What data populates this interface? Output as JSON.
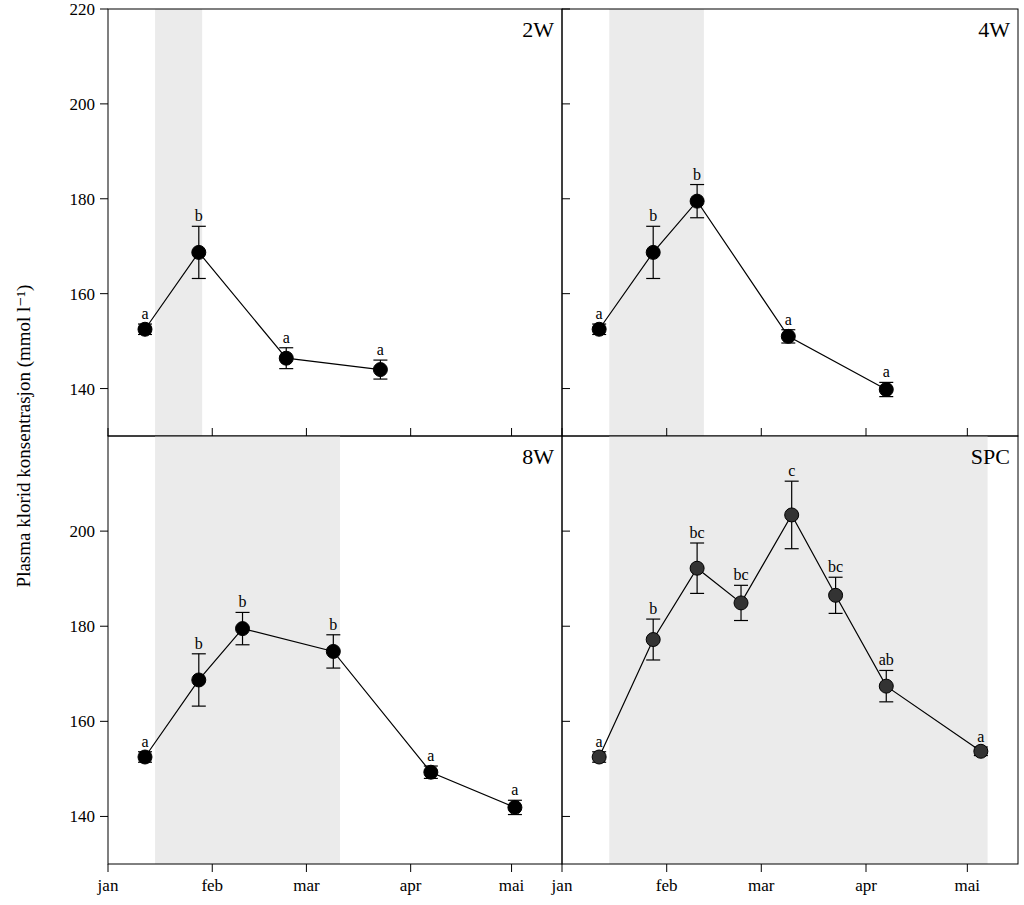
{
  "chart_data": [
    {
      "type": "line",
      "title": "2W",
      "y_label": "Plasma klorid konsentrasjon (mmol l⁻¹)",
      "x": [
        12,
        28,
        54,
        82
      ],
      "values": [
        152.5,
        168.7,
        146.4,
        144.0
      ],
      "errors": [
        1.1,
        5.5,
        2.2,
        2.0
      ],
      "point_labels": [
        "a",
        "b",
        "a",
        "a"
      ],
      "shaded_x": [
        15,
        29
      ],
      "color": "#000000",
      "marker": "circle",
      "xlim": [
        1,
        136
      ],
      "ylim": [
        130,
        220
      ],
      "xticks": [
        {
          "value": 1,
          "label": "jan"
        },
        {
          "value": 32,
          "label": "feb"
        },
        {
          "value": 60,
          "label": "mar"
        },
        {
          "value": 91,
          "label": "apr"
        },
        {
          "value": 121,
          "label": "mai"
        }
      ],
      "yticks": [
        140,
        160,
        180,
        200,
        220
      ],
      "tick_labels": "y"
    },
    {
      "type": "line",
      "title": "4W",
      "x": [
        12,
        28,
        41,
        68,
        97
      ],
      "values": [
        152.5,
        168.7,
        179.5,
        151.0,
        139.8
      ],
      "errors": [
        1.1,
        5.5,
        3.5,
        1.4,
        1.5
      ],
      "point_labels": [
        "a",
        "b",
        "b",
        "a",
        "a"
      ],
      "shaded_x": [
        15,
        43
      ],
      "color": "#000000",
      "marker": "circle",
      "xlim": [
        1,
        136
      ],
      "ylim": [
        130,
        220
      ],
      "xticks": [
        {
          "value": 1,
          "label": "jan"
        },
        {
          "value": 32,
          "label": "feb"
        },
        {
          "value": 60,
          "label": "mar"
        },
        {
          "value": 91,
          "label": "apr"
        },
        {
          "value": 121,
          "label": "mai"
        }
      ],
      "yticks": [
        140,
        160,
        180,
        200,
        220
      ],
      "tick_labels": false
    },
    {
      "type": "line",
      "title": "8W",
      "x": [
        12,
        28,
        41,
        68,
        97,
        122
      ],
      "values": [
        152.5,
        168.7,
        179.5,
        174.7,
        149.3,
        141.9
      ],
      "errors": [
        1.1,
        5.5,
        3.4,
        3.5,
        1.3,
        1.5
      ],
      "point_labels": [
        "a",
        "b",
        "b",
        "b",
        "a",
        "a"
      ],
      "shaded_x": [
        15,
        70
      ],
      "color": "#000000",
      "marker": "circle",
      "xlim": [
        1,
        136
      ],
      "ylim": [
        130,
        220
      ],
      "xticks": [
        {
          "value": 1,
          "label": "jan"
        },
        {
          "value": 32,
          "label": "feb"
        },
        {
          "value": 60,
          "label": "mar"
        },
        {
          "value": 91,
          "label": "apr"
        },
        {
          "value": 121,
          "label": "mai"
        }
      ],
      "yticks": [
        140,
        160,
        180,
        200
      ],
      "tick_labels": true
    },
    {
      "type": "line",
      "title": "SPC",
      "x": [
        12,
        28,
        41,
        54,
        69,
        82,
        97,
        125
      ],
      "values": [
        152.5,
        177.2,
        192.2,
        184.9,
        203.4,
        186.5,
        167.4,
        153.7
      ],
      "errors": [
        1.1,
        4.3,
        5.3,
        3.7,
        7.1,
        3.8,
        3.3,
        0.9
      ],
      "point_labels": [
        "a",
        "b",
        "bc",
        "bc",
        "c",
        "bc",
        "ab",
        "a"
      ],
      "shaded_x": [
        15,
        127
      ],
      "color": "#333333",
      "marker": "circle",
      "xlim": [
        1,
        136
      ],
      "ylim": [
        130,
        220
      ],
      "xticks": [
        {
          "value": 1,
          "label": "jan"
        },
        {
          "value": 32,
          "label": "feb"
        },
        {
          "value": 60,
          "label": "mar"
        },
        {
          "value": 91,
          "label": "apr"
        },
        {
          "value": 121,
          "label": "mai"
        }
      ],
      "yticks": [
        140,
        160,
        180,
        200
      ],
      "tick_labels": "x"
    }
  ]
}
